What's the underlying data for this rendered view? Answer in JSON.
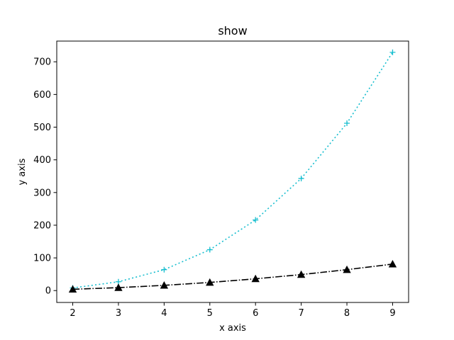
{
  "chart_data": {
    "type": "line",
    "title": "show",
    "xlabel": "x axis",
    "ylabel": "y axis",
    "x": [
      2,
      3,
      4,
      5,
      6,
      7,
      8,
      9
    ],
    "xlim": [
      1.65,
      9.35
    ],
    "ylim": [
      -36.35,
      763.35
    ],
    "xticks": [
      2,
      3,
      4,
      5,
      6,
      7,
      8,
      9
    ],
    "yticks": [
      0,
      100,
      200,
      300,
      400,
      500,
      600,
      700
    ],
    "grid": false,
    "series": [
      {
        "values": [
          8,
          27,
          64,
          125,
          216,
          343,
          512,
          729
        ],
        "color": "#17becf",
        "linestyle": "dotted",
        "marker": "plus"
      },
      {
        "values": [
          4,
          9,
          16,
          25,
          36,
          49,
          64,
          81
        ],
        "color": "#000000",
        "linestyle": "dashdot",
        "marker": "triangle-up"
      }
    ]
  }
}
